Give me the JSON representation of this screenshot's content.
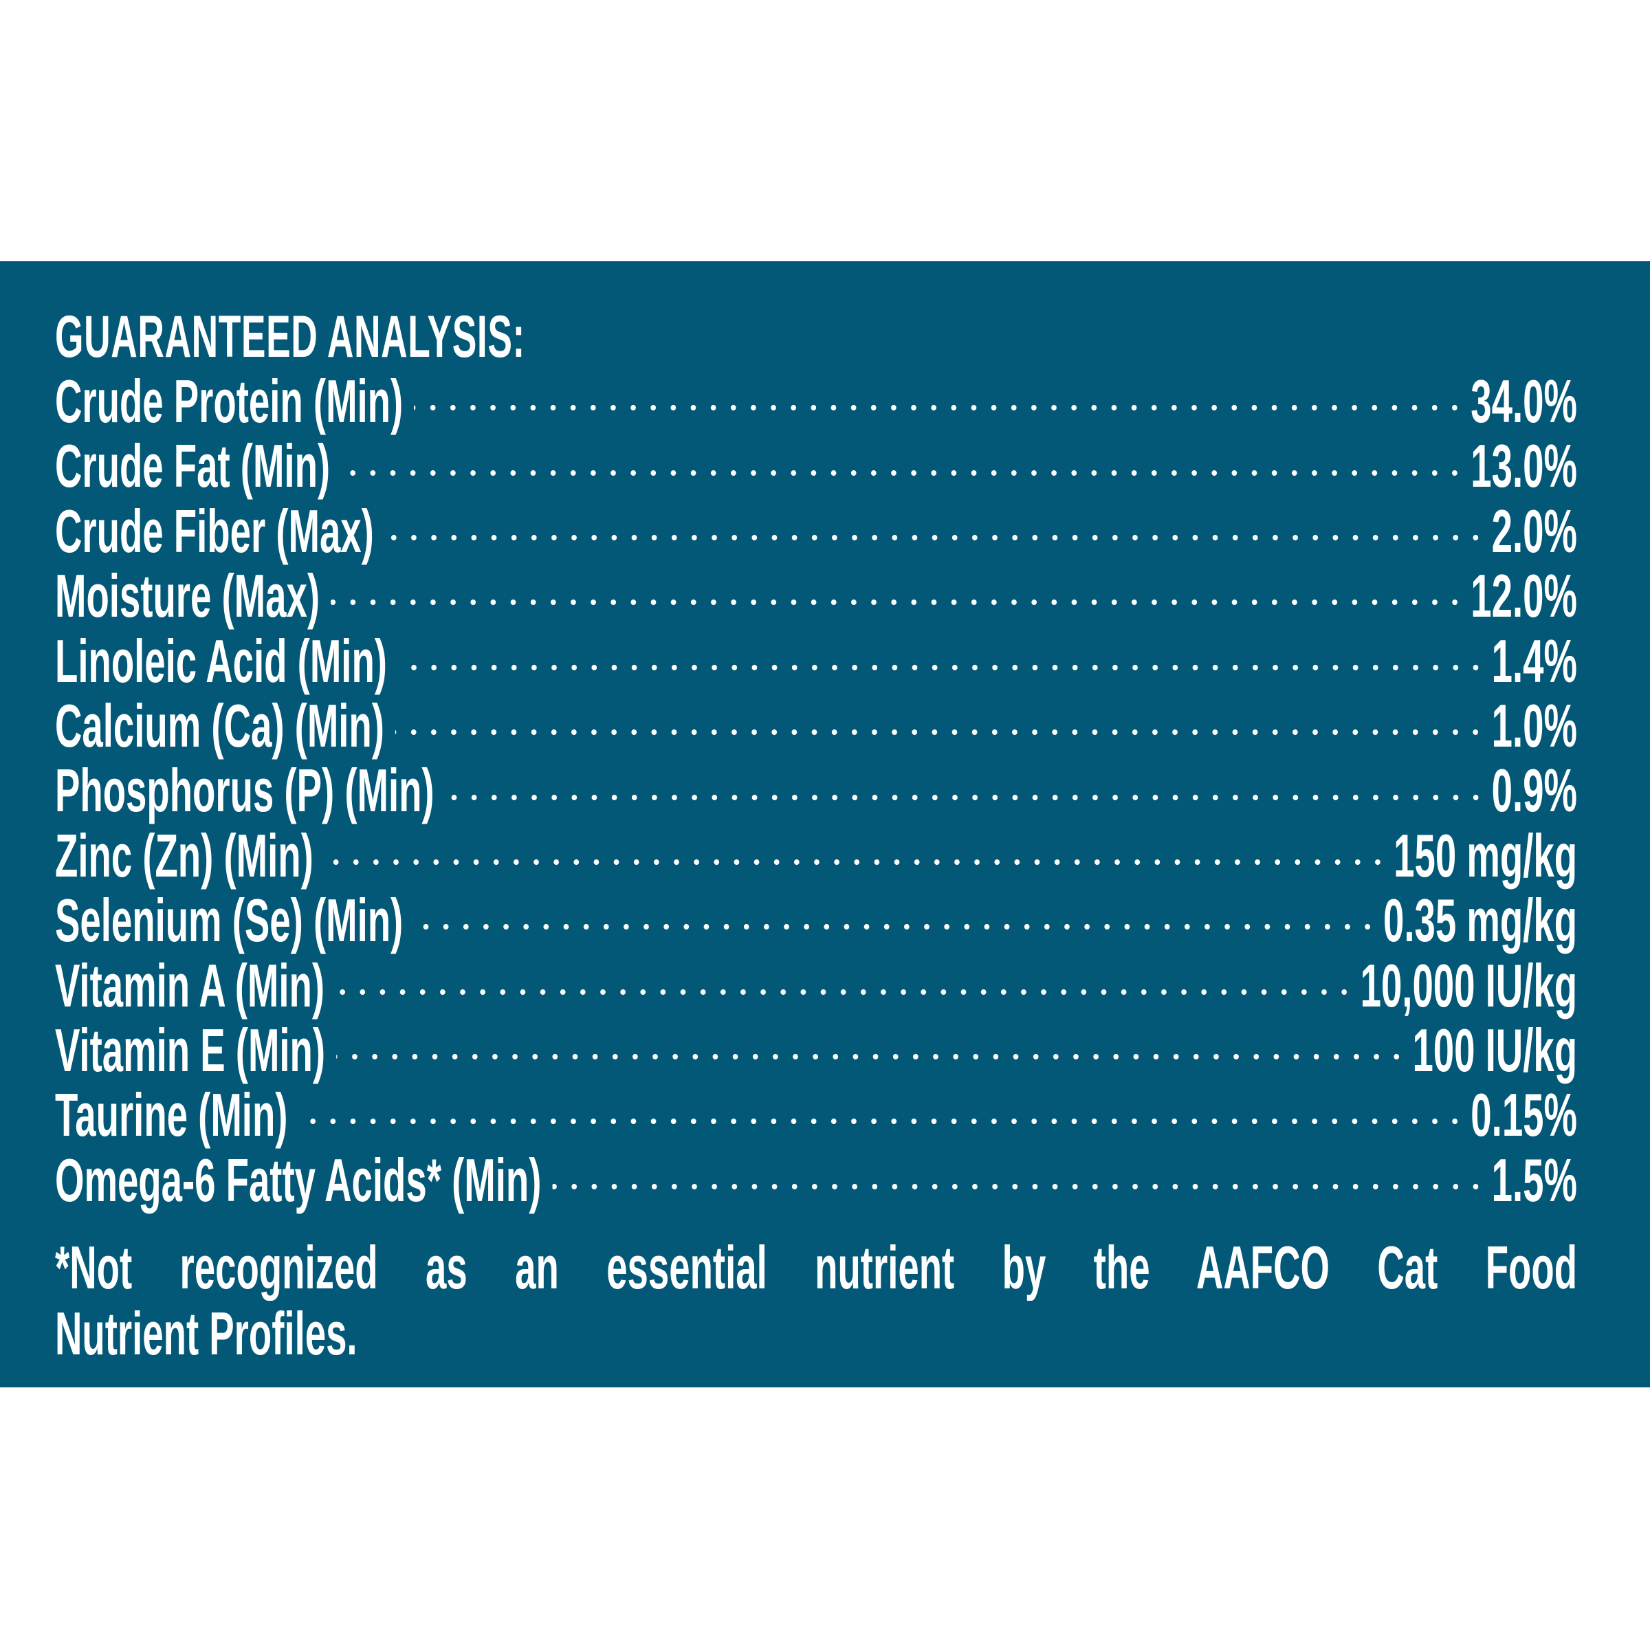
{
  "colors": {
    "panel_background": "#025876",
    "text": "#ffffff",
    "page_background": "#ffffff"
  },
  "title": "GUARANTEED ANALYSIS:",
  "rows": [
    {
      "label": "Crude Protein (Min)",
      "value": "34.0%"
    },
    {
      "label": "Crude Fat (Min)",
      "value": "13.0%"
    },
    {
      "label": "Crude Fiber (Max)",
      "value": "2.0%"
    },
    {
      "label": "Moisture (Max)",
      "value": "12.0%"
    },
    {
      "label": "Linoleic Acid (Min)",
      "value": "1.4%"
    },
    {
      "label": "Calcium (Ca) (Min)",
      "value": "1.0%"
    },
    {
      "label": "Phosphorus (P) (Min)",
      "value": "0.9%"
    },
    {
      "label": "Zinc (Zn) (Min)",
      "value": "150 mg/kg"
    },
    {
      "label": "Selenium (Se) (Min)",
      "value": "0.35 mg/kg"
    },
    {
      "label": "Vitamin A (Min)",
      "value": "10,000 IU/kg"
    },
    {
      "label": "Vitamin E (Min)",
      "value": "100 IU/kg"
    },
    {
      "label": "Taurine (Min)",
      "value": "0.15%"
    },
    {
      "label": "Omega-6 Fatty Acids* (Min)",
      "value": "1.5%"
    }
  ],
  "footnote": {
    "line1": "*Not recognized as an essential nutrient by the AAFCO Cat Food",
    "line2": "Nutrient Profiles."
  }
}
